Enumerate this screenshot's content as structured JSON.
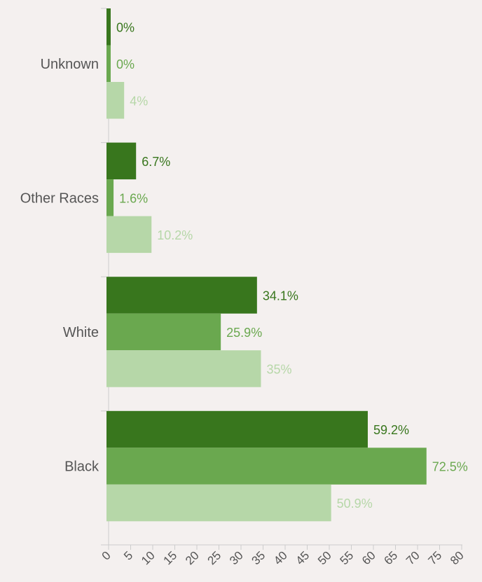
{
  "chart_data": {
    "type": "bar",
    "orientation": "horizontal",
    "categories": [
      "Unknown",
      "Other Races",
      "White",
      "Black"
    ],
    "series": [
      {
        "values": [
          0,
          6.7,
          34.1,
          59.2
        ],
        "labels": [
          "0%",
          "6.7%",
          "34.1%",
          "59.2%"
        ],
        "color": "#38761d"
      },
      {
        "values": [
          0,
          1.6,
          25.9,
          72.5
        ],
        "labels": [
          "0%",
          "1.6%",
          "25.9%",
          "72.5%"
        ],
        "color": "#6aa84f"
      },
      {
        "values": [
          4,
          10.2,
          35,
          50.9
        ],
        "labels": [
          "4%",
          "10.2%",
          "35%",
          "50.9%"
        ],
        "color": "#b6d7a8"
      }
    ],
    "xlim": [
      0,
      80
    ],
    "xticks": [
      "0",
      "5",
      "10",
      "15",
      "20",
      "25",
      "30",
      "35",
      "40",
      "45",
      "50",
      "55",
      "60",
      "65",
      "70",
      "75",
      "80"
    ],
    "grid": false,
    "legend": "none"
  }
}
